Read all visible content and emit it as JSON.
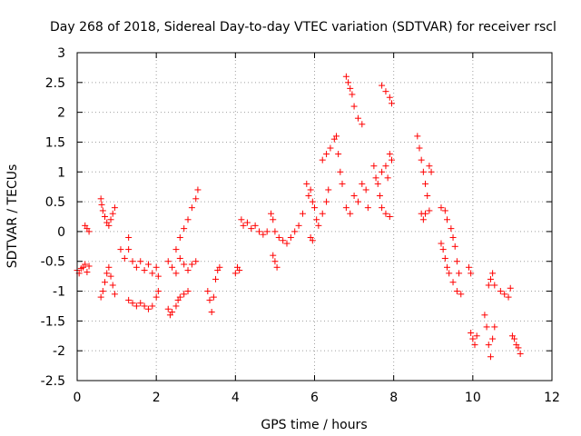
{
  "chart_data": {
    "type": "scatter",
    "title": "Day 268 of 2018, Sidereal Day-to-day VTEC variation (SDTVAR) for receiver rscl",
    "xlabel": "GPS time / hours",
    "ylabel": "SDTVAR / TECUs",
    "xlim": [
      0,
      12
    ],
    "ylim": [
      -2.5,
      3
    ],
    "xticks": [
      "0",
      "2",
      "4",
      "6",
      "8",
      "10",
      "12"
    ],
    "yticks": [
      "-2.5",
      "-2",
      "-1.5",
      "-1",
      "-0.5",
      "0",
      "0.5",
      "1",
      "1.5",
      "2",
      "2.5",
      "3"
    ],
    "grid": true,
    "marker": "+",
    "color": "#ff0000",
    "series": [
      {
        "name": "SDTVAR",
        "points": [
          [
            0.0,
            -0.65
          ],
          [
            0.05,
            -0.7
          ],
          [
            0.1,
            -0.62
          ],
          [
            0.15,
            -0.6
          ],
          [
            0.2,
            -0.55
          ],
          [
            0.25,
            -0.68
          ],
          [
            0.3,
            -0.58
          ],
          [
            0.2,
            0.1
          ],
          [
            0.25,
            0.05
          ],
          [
            0.3,
            0.0
          ],
          [
            0.6,
            0.55
          ],
          [
            0.62,
            0.45
          ],
          [
            0.65,
            0.35
          ],
          [
            0.7,
            0.25
          ],
          [
            0.75,
            0.15
          ],
          [
            0.8,
            0.1
          ],
          [
            0.85,
            0.2
          ],
          [
            0.9,
            0.3
          ],
          [
            0.95,
            0.4
          ],
          [
            0.6,
            -1.1
          ],
          [
            0.65,
            -1.0
          ],
          [
            0.7,
            -0.85
          ],
          [
            0.75,
            -0.7
          ],
          [
            0.8,
            -0.6
          ],
          [
            0.85,
            -0.75
          ],
          [
            0.9,
            -0.9
          ],
          [
            0.95,
            -1.05
          ],
          [
            1.1,
            -0.3
          ],
          [
            1.2,
            -0.45
          ],
          [
            1.3,
            -0.3
          ],
          [
            1.3,
            -0.1
          ],
          [
            1.4,
            -0.5
          ],
          [
            1.5,
            -0.6
          ],
          [
            1.6,
            -0.5
          ],
          [
            1.7,
            -0.65
          ],
          [
            1.8,
            -0.55
          ],
          [
            1.9,
            -0.7
          ],
          [
            2.0,
            -0.6
          ],
          [
            2.05,
            -0.75
          ],
          [
            1.3,
            -1.15
          ],
          [
            1.4,
            -1.2
          ],
          [
            1.5,
            -1.25
          ],
          [
            1.6,
            -1.2
          ],
          [
            1.7,
            -1.25
          ],
          [
            1.8,
            -1.3
          ],
          [
            1.9,
            -1.25
          ],
          [
            2.0,
            -1.1
          ],
          [
            2.05,
            -1.0
          ],
          [
            2.3,
            -1.3
          ],
          [
            2.35,
            -1.4
          ],
          [
            2.4,
            -1.35
          ],
          [
            2.5,
            -1.25
          ],
          [
            2.55,
            -1.15
          ],
          [
            2.6,
            -1.1
          ],
          [
            2.7,
            -1.05
          ],
          [
            2.8,
            -1.0
          ],
          [
            2.3,
            -0.5
          ],
          [
            2.4,
            -0.6
          ],
          [
            2.5,
            -0.7
          ],
          [
            2.6,
            -0.45
          ],
          [
            2.7,
            -0.55
          ],
          [
            2.8,
            -0.65
          ],
          [
            2.9,
            -0.55
          ],
          [
            3.0,
            -0.5
          ],
          [
            2.5,
            -0.3
          ],
          [
            2.6,
            -0.1
          ],
          [
            2.7,
            0.05
          ],
          [
            2.8,
            0.2
          ],
          [
            2.9,
            0.4
          ],
          [
            3.0,
            0.55
          ],
          [
            3.05,
            0.7
          ],
          [
            3.3,
            -1.0
          ],
          [
            3.35,
            -1.15
          ],
          [
            3.4,
            -1.35
          ],
          [
            3.45,
            -1.1
          ],
          [
            3.5,
            -0.8
          ],
          [
            3.55,
            -0.65
          ],
          [
            3.6,
            -0.6
          ],
          [
            4.0,
            -0.7
          ],
          [
            4.05,
            -0.6
          ],
          [
            4.1,
            -0.65
          ],
          [
            4.15,
            0.2
          ],
          [
            4.2,
            0.1
          ],
          [
            4.3,
            0.15
          ],
          [
            4.4,
            0.05
          ],
          [
            4.5,
            0.1
          ],
          [
            4.6,
            0.0
          ],
          [
            4.7,
            -0.05
          ],
          [
            4.8,
            0.0
          ],
          [
            4.9,
            0.3
          ],
          [
            4.95,
            0.2
          ],
          [
            5.0,
            0.0
          ],
          [
            4.95,
            -0.4
          ],
          [
            5.0,
            -0.5
          ],
          [
            5.05,
            -0.6
          ],
          [
            5.1,
            -0.1
          ],
          [
            5.2,
            -0.15
          ],
          [
            5.3,
            -0.2
          ],
          [
            5.4,
            -0.1
          ],
          [
            5.5,
            0.0
          ],
          [
            5.6,
            0.1
          ],
          [
            5.7,
            0.3
          ],
          [
            5.8,
            0.8
          ],
          [
            5.85,
            0.6
          ],
          [
            5.9,
            0.7
          ],
          [
            5.95,
            0.5
          ],
          [
            6.0,
            0.4
          ],
          [
            6.05,
            0.2
          ],
          [
            6.1,
            0.1
          ],
          [
            5.9,
            -0.1
          ],
          [
            5.95,
            -0.15
          ],
          [
            6.2,
            0.3
          ],
          [
            6.3,
            0.5
          ],
          [
            6.35,
            0.7
          ],
          [
            6.2,
            1.2
          ],
          [
            6.3,
            1.3
          ],
          [
            6.4,
            1.4
          ],
          [
            6.5,
            1.55
          ],
          [
            6.55,
            1.6
          ],
          [
            6.6,
            1.3
          ],
          [
            6.65,
            1.0
          ],
          [
            6.7,
            0.8
          ],
          [
            6.8,
            2.6
          ],
          [
            6.85,
            2.5
          ],
          [
            6.9,
            2.4
          ],
          [
            6.95,
            2.3
          ],
          [
            7.0,
            2.1
          ],
          [
            7.1,
            1.9
          ],
          [
            7.2,
            1.8
          ],
          [
            6.8,
            0.4
          ],
          [
            6.9,
            0.3
          ],
          [
            7.0,
            0.6
          ],
          [
            7.1,
            0.5
          ],
          [
            7.2,
            0.8
          ],
          [
            7.3,
            0.7
          ],
          [
            7.35,
            0.4
          ],
          [
            7.5,
            1.1
          ],
          [
            7.55,
            0.9
          ],
          [
            7.6,
            0.8
          ],
          [
            7.65,
            0.6
          ],
          [
            7.7,
            0.4
          ],
          [
            7.8,
            0.3
          ],
          [
            7.9,
            0.25
          ],
          [
            7.7,
            2.45
          ],
          [
            7.8,
            2.35
          ],
          [
            7.9,
            2.25
          ],
          [
            7.95,
            2.15
          ],
          [
            7.7,
            1.0
          ],
          [
            7.8,
            1.1
          ],
          [
            7.85,
            0.9
          ],
          [
            7.9,
            1.3
          ],
          [
            7.95,
            1.2
          ],
          [
            8.6,
            1.6
          ],
          [
            8.65,
            1.4
          ],
          [
            8.7,
            1.2
          ],
          [
            8.75,
            1.0
          ],
          [
            8.8,
            0.8
          ],
          [
            8.85,
            0.6
          ],
          [
            8.9,
            1.1
          ],
          [
            8.95,
            1.0
          ],
          [
            8.7,
            0.3
          ],
          [
            8.75,
            0.2
          ],
          [
            8.8,
            0.3
          ],
          [
            8.9,
            0.35
          ],
          [
            9.2,
            0.4
          ],
          [
            9.3,
            0.35
          ],
          [
            9.35,
            0.2
          ],
          [
            9.45,
            0.05
          ],
          [
            9.5,
            -0.1
          ],
          [
            9.55,
            -0.25
          ],
          [
            9.6,
            -0.5
          ],
          [
            9.65,
            -0.7
          ],
          [
            9.2,
            -0.2
          ],
          [
            9.25,
            -0.3
          ],
          [
            9.3,
            -0.45
          ],
          [
            9.35,
            -0.6
          ],
          [
            9.4,
            -0.7
          ],
          [
            9.5,
            -0.85
          ],
          [
            9.6,
            -1.0
          ],
          [
            9.7,
            -1.05
          ],
          [
            9.9,
            -0.6
          ],
          [
            9.95,
            -0.7
          ],
          [
            9.95,
            -1.7
          ],
          [
            10.0,
            -1.8
          ],
          [
            10.05,
            -1.9
          ],
          [
            10.1,
            -1.75
          ],
          [
            10.3,
            -1.4
          ],
          [
            10.35,
            -1.6
          ],
          [
            10.4,
            -1.9
          ],
          [
            10.45,
            -2.1
          ],
          [
            10.5,
            -1.8
          ],
          [
            10.55,
            -1.6
          ],
          [
            10.4,
            -0.9
          ],
          [
            10.45,
            -0.8
          ],
          [
            10.5,
            -0.7
          ],
          [
            10.55,
            -0.9
          ],
          [
            10.7,
            -1.0
          ],
          [
            10.8,
            -1.05
          ],
          [
            10.9,
            -1.1
          ],
          [
            10.95,
            -0.95
          ],
          [
            11.0,
            -1.75
          ],
          [
            11.05,
            -1.8
          ],
          [
            11.1,
            -1.9
          ],
          [
            11.15,
            -1.95
          ],
          [
            11.2,
            -2.05
          ]
        ]
      }
    ]
  }
}
